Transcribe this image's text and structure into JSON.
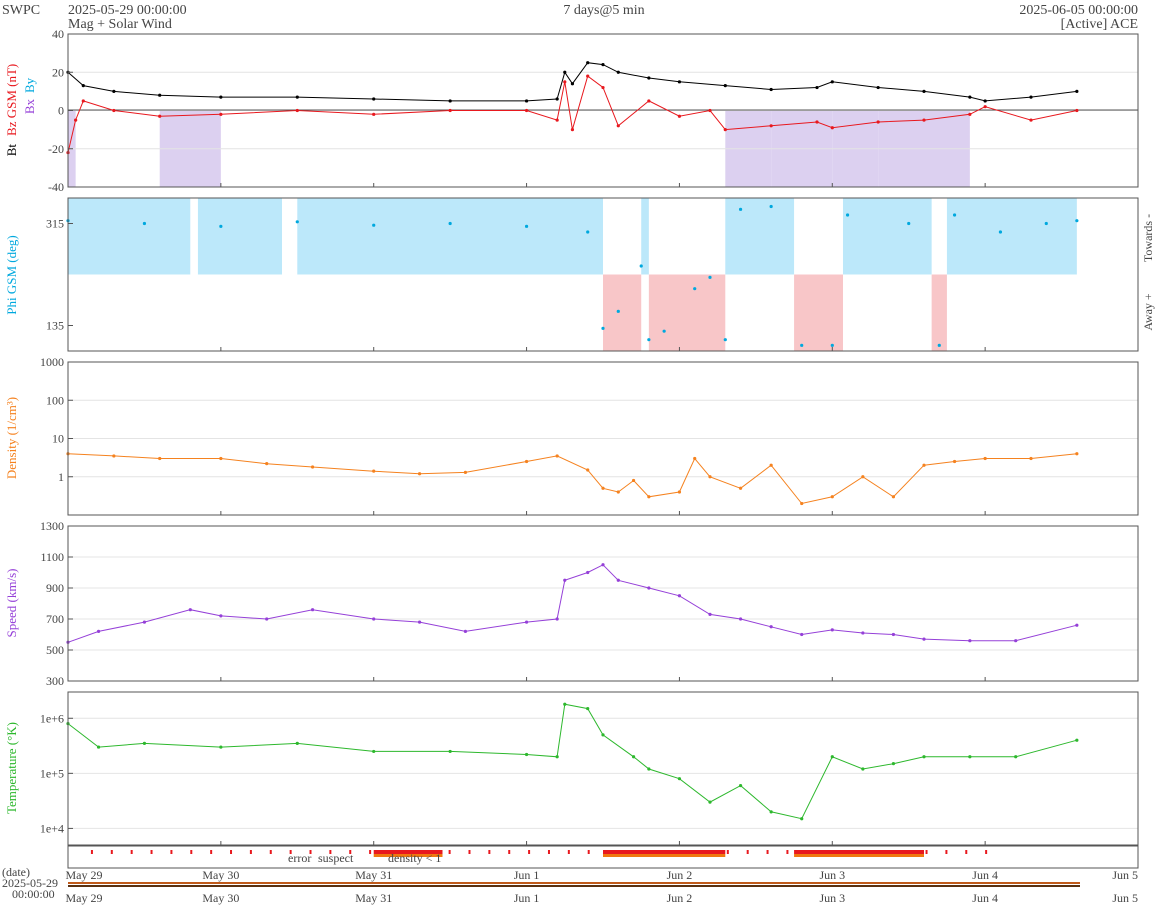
{
  "header": {
    "org": "SWPC",
    "start": "2025-05-29 00:00:00",
    "subtitle": "Mag + Solar Wind",
    "span": "7 days@5 min",
    "end": "2025-06-05 00:00:00",
    "source": "[Active] ACE"
  },
  "colors": {
    "bt": "#000000",
    "bz": "#e8181e",
    "phi": "#00a8de",
    "density": "#f5821f",
    "speed": "#9540d8",
    "temperature": "#2db82d",
    "bz_south_fill": "#dcd0f0",
    "toward_fill": "#bce8fa",
    "away_fill": "#f8c6c8",
    "error": "#e8181e",
    "suspect": "#f5b400",
    "density_low": "#f07810"
  },
  "x_axis": {
    "ticks": [
      "May 29",
      "May 30",
      "May 31",
      "Jun 1",
      "Jun 2",
      "Jun 3",
      "Jun 4",
      "Jun 5"
    ],
    "date_label": "(date)",
    "start_date": "2025-05-29",
    "start_time": "00:00:00"
  },
  "flags": {
    "error": "error",
    "suspect": "suspect",
    "density_low": "density < 1"
  },
  "chart_data": [
    {
      "type": "line",
      "ylabel": "Bt  Bz GSM (nT)",
      "ylabel_parts": {
        "bt": "Bt",
        "bz": "Bz GSM (nT)",
        "bx": "Bx",
        "by": "By"
      },
      "ylim": [
        -40,
        40
      ],
      "yticks": [
        "40",
        "20",
        "0",
        "-20",
        "-40"
      ],
      "grid": true,
      "x_unit": "days since 2025-05-29",
      "series": [
        {
          "name": "Bt",
          "x": [
            0,
            0.1,
            0.3,
            0.6,
            1,
            1.5,
            2,
            2.5,
            3,
            3.2,
            3.25,
            3.3,
            3.4,
            3.5,
            3.6,
            3.8,
            4,
            4.3,
            4.6,
            4.9,
            5,
            5.3,
            5.6,
            5.9,
            6,
            6.3,
            6.6
          ],
          "y": [
            20,
            13,
            10,
            8,
            7,
            7,
            6,
            5,
            5,
            6,
            20,
            14,
            25,
            24,
            20,
            17,
            15,
            13,
            11,
            12,
            15,
            12,
            10,
            7,
            5,
            7,
            10
          ]
        },
        {
          "name": "Bz",
          "x": [
            0,
            0.05,
            0.1,
            0.3,
            0.6,
            1,
            1.5,
            2,
            2.5,
            3,
            3.2,
            3.25,
            3.3,
            3.4,
            3.5,
            3.6,
            3.8,
            4,
            4.2,
            4.3,
            4.6,
            4.9,
            5,
            5.3,
            5.6,
            5.9,
            6,
            6.3,
            6.6
          ],
          "y": [
            -22,
            -5,
            5,
            0,
            -3,
            -2,
            0,
            -2,
            0,
            0,
            -5,
            15,
            -10,
            18,
            12,
            -8,
            5,
            -3,
            0,
            -10,
            -8,
            -6,
            -9,
            -6,
            -5,
            -2,
            2,
            -5,
            0
          ]
        }
      ]
    },
    {
      "type": "scatter",
      "ylabel": "Phi GSM (deg)",
      "right_labels": {
        "top": "Towards -",
        "bottom": "Away +"
      },
      "ylim": [
        90,
        360
      ],
      "yticks": [
        "315",
        "135"
      ],
      "sectors": [
        {
          "name": "Towards -",
          "x_ranges": [
            [
              0,
              0.8
            ],
            [
              0.85,
              1.4
            ],
            [
              1.5,
              3.5
            ],
            [
              3.75,
              3.8
            ],
            [
              4.3,
              4.75
            ],
            [
              5.07,
              5.65
            ],
            [
              5.75,
              6.6
            ]
          ]
        },
        {
          "name": "Away +",
          "x_ranges": [
            [
              3.5,
              3.75
            ],
            [
              3.8,
              4.3
            ],
            [
              4.75,
              5.07
            ],
            [
              5.65,
              5.75
            ]
          ]
        }
      ],
      "series": [
        {
          "name": "Phi",
          "x": [
            0,
            0.5,
            1,
            1.5,
            2,
            2.5,
            3,
            3.4,
            3.5,
            3.6,
            3.75,
            3.8,
            3.9,
            4.1,
            4.2,
            4.3,
            4.4,
            4.6,
            4.8,
            5,
            5.1,
            5.5,
            5.7,
            5.8,
            6.1,
            6.4,
            6.6
          ],
          "y": [
            320,
            315,
            310,
            318,
            312,
            315,
            310,
            300,
            130,
            160,
            240,
            110,
            125,
            200,
            220,
            110,
            340,
            345,
            100,
            100,
            330,
            315,
            100,
            330,
            300,
            315,
            320
          ]
        }
      ]
    },
    {
      "type": "line",
      "ylabel": "Density (1/cm³)",
      "scale": "log",
      "ylim": [
        0.1,
        1000
      ],
      "yticks": [
        "1000",
        "100",
        "10",
        "1"
      ],
      "series": [
        {
          "name": "Density",
          "x": [
            0,
            0.3,
            0.6,
            1,
            1.3,
            1.6,
            2,
            2.3,
            2.6,
            3,
            3.2,
            3.4,
            3.5,
            3.6,
            3.7,
            3.8,
            4,
            4.1,
            4.2,
            4.4,
            4.6,
            4.8,
            5,
            5.2,
            5.4,
            5.6,
            5.8,
            6,
            6.3,
            6.6
          ],
          "y": [
            4,
            3.5,
            3,
            3,
            2.2,
            1.8,
            1.4,
            1.2,
            1.3,
            2.5,
            3.5,
            1.5,
            0.5,
            0.4,
            0.8,
            0.3,
            0.4,
            3,
            1,
            0.5,
            2,
            0.2,
            0.3,
            1,
            0.3,
            2,
            2.5,
            3,
            3,
            4
          ]
        }
      ]
    },
    {
      "type": "line",
      "ylabel": "Speed (km/s)",
      "ylim": [
        300,
        1300
      ],
      "yticks": [
        "1300",
        "1100",
        "900",
        "700",
        "500",
        "300"
      ],
      "series": [
        {
          "name": "Speed",
          "x": [
            0,
            0.2,
            0.5,
            0.8,
            1,
            1.3,
            1.6,
            2,
            2.3,
            2.6,
            3,
            3.2,
            3.25,
            3.4,
            3.5,
            3.6,
            3.8,
            4,
            4.2,
            4.4,
            4.6,
            4.8,
            5,
            5.2,
            5.4,
            5.6,
            5.9,
            6.2,
            6.6
          ],
          "y": [
            550,
            620,
            680,
            760,
            720,
            700,
            760,
            700,
            680,
            620,
            680,
            700,
            950,
            1000,
            1050,
            950,
            900,
            850,
            730,
            700,
            650,
            600,
            630,
            610,
            600,
            570,
            560,
            560,
            660
          ]
        }
      ]
    },
    {
      "type": "line",
      "ylabel": "Temperature (°K)",
      "scale": "log",
      "ylim": [
        5000,
        3000000
      ],
      "yticks": [
        "1e+6",
        "1e+5",
        "1e+4"
      ],
      "series": [
        {
          "name": "Temperature",
          "x": [
            0,
            0.2,
            0.5,
            1,
            1.5,
            2,
            2.5,
            3,
            3.2,
            3.25,
            3.4,
            3.5,
            3.7,
            3.8,
            4,
            4.2,
            4.4,
            4.6,
            4.8,
            5,
            5.2,
            5.4,
            5.6,
            5.9,
            6.2,
            6.6
          ],
          "y": [
            800000,
            300000,
            350000,
            300000,
            350000,
            250000,
            250000,
            220000,
            200000,
            1800000,
            1500000,
            500000,
            200000,
            120000,
            80000,
            30000,
            60000,
            20000,
            15000,
            200000,
            120000,
            150000,
            200000,
            200000,
            200000,
            400000
          ]
        }
      ]
    }
  ]
}
